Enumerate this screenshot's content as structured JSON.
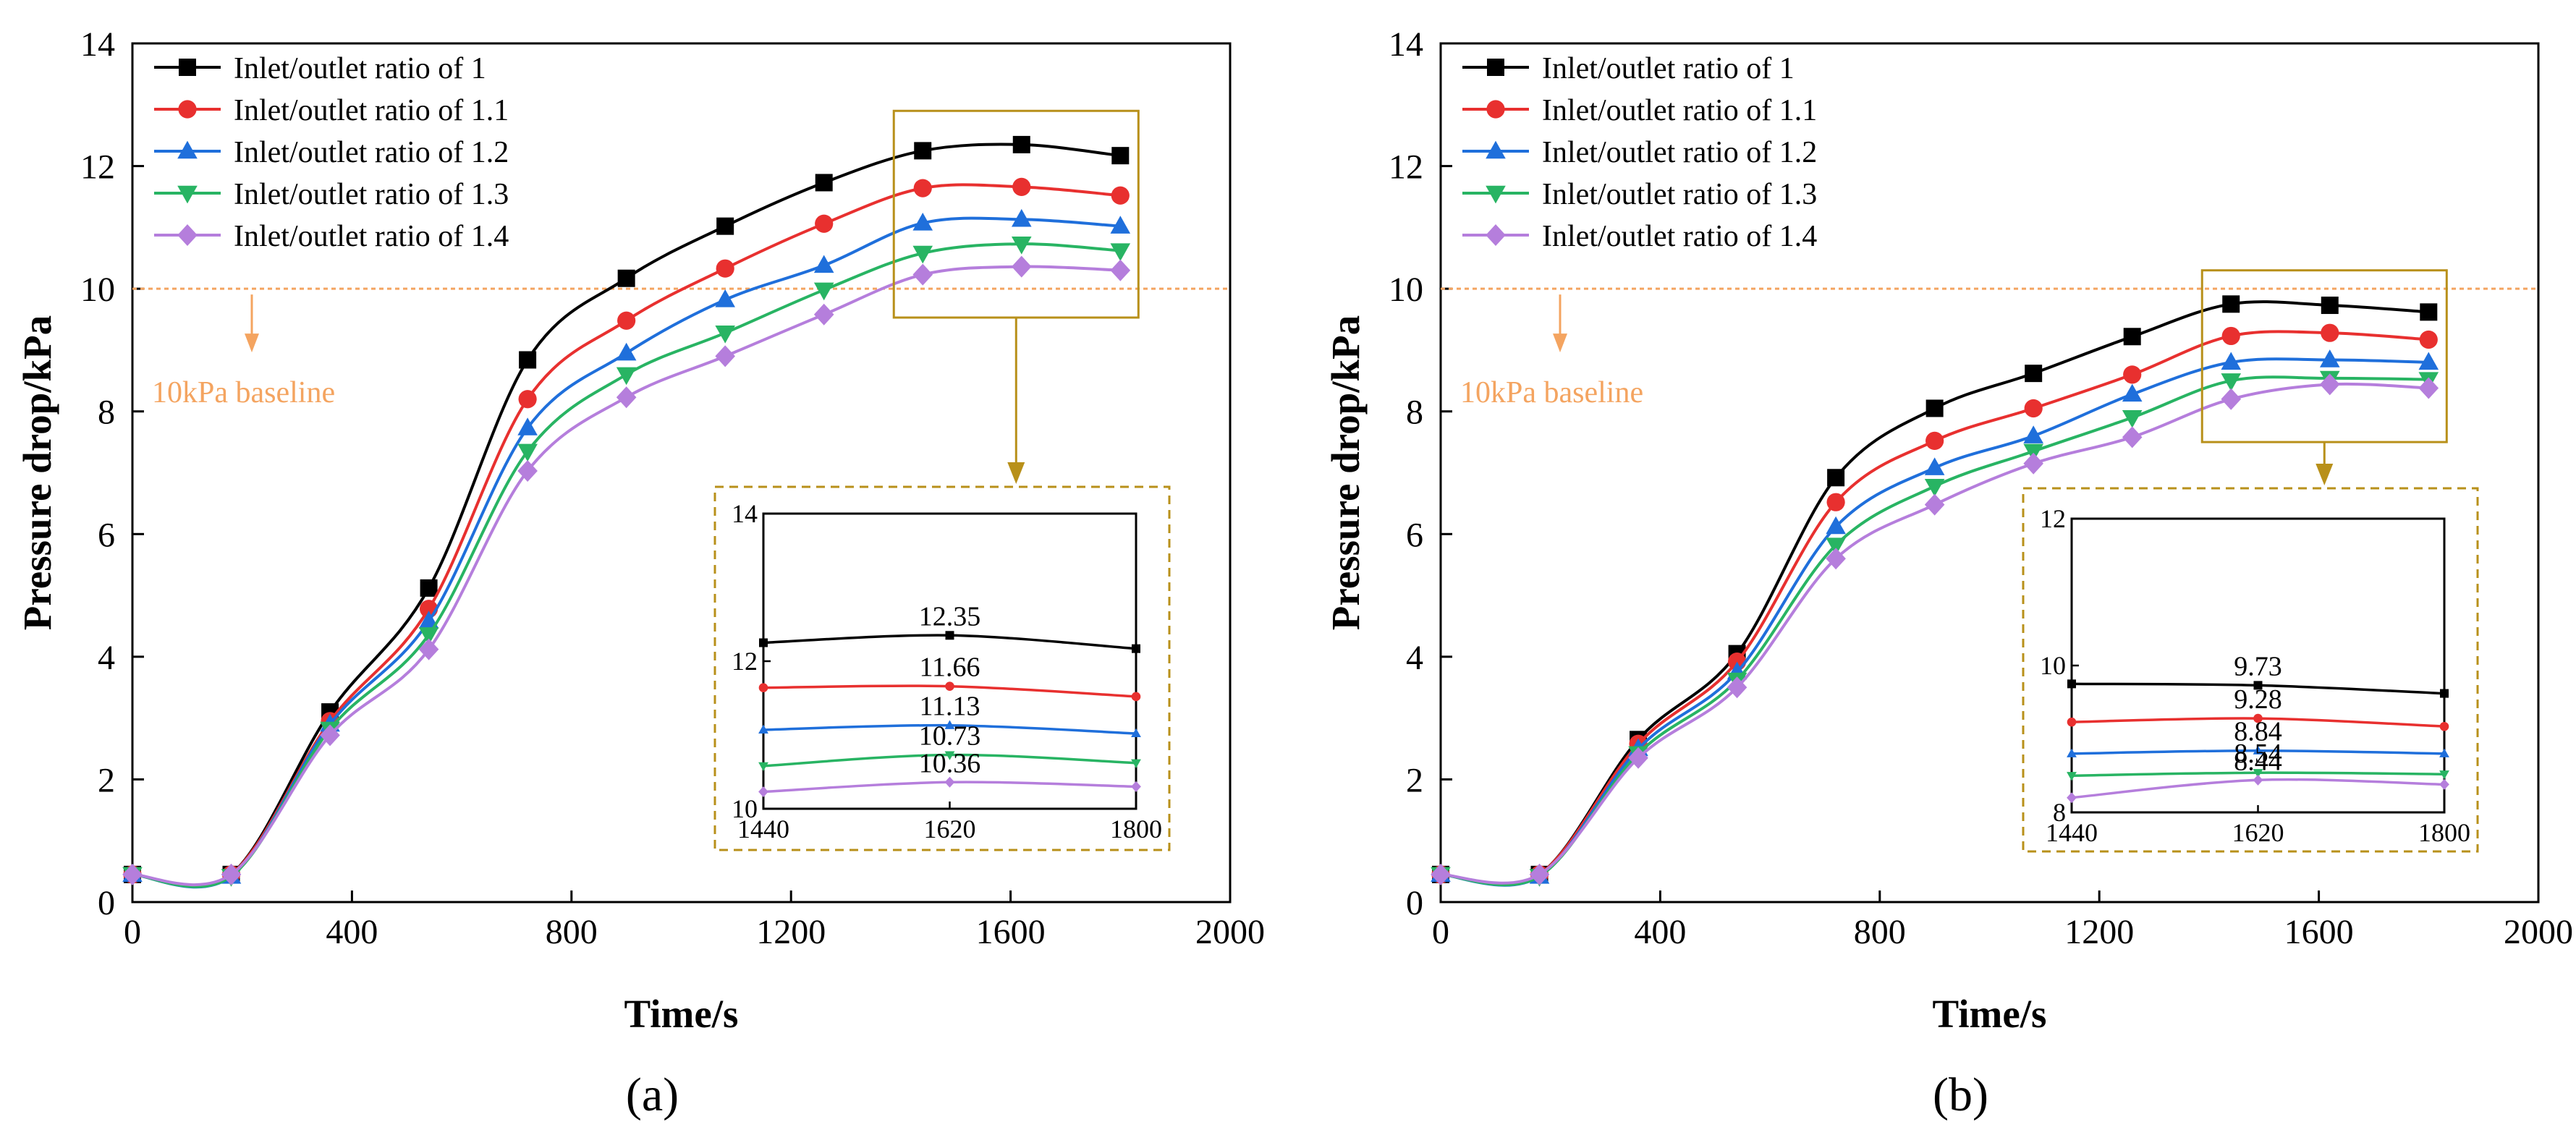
{
  "chart_data": [
    {
      "type": "line",
      "panel_label": "(a)",
      "xlabel": "Time/s",
      "ylabel": "Pressure drop/kPa",
      "xlim": [
        0,
        2000
      ],
      "ylim": [
        0,
        14
      ],
      "xticks": [
        "0",
        "400",
        "800",
        "1200",
        "1600",
        "2000"
      ],
      "yticks": [
        "0",
        "2",
        "4",
        "6",
        "8",
        "10",
        "12",
        "14"
      ],
      "grid": false,
      "legend_position": "top-left",
      "baseline": {
        "y": 10,
        "label": "10kPa baseline",
        "color": "#f4a460"
      },
      "x": [
        0,
        180,
        360,
        540,
        720,
        900,
        1080,
        1260,
        1440,
        1620,
        1800
      ],
      "series": [
        {
          "name": "Inlet/outlet ratio of 1",
          "color": "#000000",
          "marker": "square",
          "values": [
            0.45,
            0.45,
            3.1,
            5.12,
            8.84,
            10.17,
            11.02,
            11.73,
            12.25,
            12.35,
            12.17
          ]
        },
        {
          "name": "Inlet/outlet ratio of 1.1",
          "color": "#e8302f",
          "marker": "circle",
          "values": [
            0.45,
            0.45,
            2.95,
            4.78,
            8.2,
            9.48,
            10.33,
            11.06,
            11.64,
            11.66,
            11.52
          ]
        },
        {
          "name": "Inlet/outlet ratio of 1.2",
          "color": "#1f6fdb",
          "marker": "triangle-up",
          "values": [
            0.45,
            0.42,
            2.9,
            4.58,
            7.73,
            8.95,
            9.82,
            10.38,
            11.07,
            11.13,
            11.02
          ]
        },
        {
          "name": "Inlet/outlet ratio of 1.3",
          "color": "#28b463",
          "marker": "triangle-down",
          "values": [
            0.45,
            0.42,
            2.82,
            4.36,
            7.35,
            8.6,
            9.28,
            9.98,
            10.58,
            10.73,
            10.62
          ]
        },
        {
          "name": "Inlet/outlet ratio of 1.4",
          "color": "#b57edc",
          "marker": "diamond",
          "values": [
            0.45,
            0.45,
            2.72,
            4.12,
            7.03,
            8.23,
            8.9,
            9.58,
            10.23,
            10.36,
            10.3
          ]
        }
      ],
      "inset": {
        "xlim": [
          1440,
          1800
        ],
        "ylim": [
          10,
          14
        ],
        "xticks": [
          "1440",
          "1620",
          "1800"
        ],
        "yticks": [
          "10",
          "12",
          "14"
        ],
        "annotations": [
          "12.35",
          "11.66",
          "11.13",
          "10.73",
          "10.36"
        ]
      }
    },
    {
      "type": "line",
      "panel_label": "(b)",
      "xlabel": "Time/s",
      "ylabel": "Pressure drop/kPa",
      "xlim": [
        0,
        2000
      ],
      "ylim": [
        0,
        14
      ],
      "xticks": [
        "0",
        "400",
        "800",
        "1200",
        "1600",
        "2000"
      ],
      "yticks": [
        "0",
        "2",
        "4",
        "6",
        "8",
        "10",
        "12",
        "14"
      ],
      "grid": false,
      "legend_position": "top-left",
      "baseline": {
        "y": 10,
        "label": "10kPa baseline",
        "color": "#f4a460"
      },
      "x": [
        0,
        180,
        360,
        540,
        720,
        900,
        1080,
        1260,
        1440,
        1620,
        1800
      ],
      "series": [
        {
          "name": "Inlet/outlet ratio of 1",
          "color": "#000000",
          "marker": "square",
          "values": [
            0.45,
            0.45,
            2.65,
            4.05,
            6.92,
            8.05,
            8.62,
            9.22,
            9.75,
            9.73,
            9.62
          ]
        },
        {
          "name": "Inlet/outlet ratio of 1.1",
          "color": "#e8302f",
          "marker": "circle",
          "values": [
            0.45,
            0.45,
            2.58,
            3.92,
            6.52,
            7.52,
            8.05,
            8.6,
            9.23,
            9.28,
            9.17
          ]
        },
        {
          "name": "Inlet/outlet ratio of 1.2",
          "color": "#1f6fdb",
          "marker": "triangle-up",
          "values": [
            0.45,
            0.42,
            2.5,
            3.75,
            6.12,
            7.08,
            7.6,
            8.28,
            8.8,
            8.84,
            8.8
          ]
        },
        {
          "name": "Inlet/outlet ratio of 1.3",
          "color": "#28b463",
          "marker": "triangle-down",
          "values": [
            0.45,
            0.42,
            2.42,
            3.62,
            5.82,
            6.78,
            7.35,
            7.9,
            8.5,
            8.54,
            8.52
          ]
        },
        {
          "name": "Inlet/outlet ratio of 1.4",
          "color": "#b57edc",
          "marker": "diamond",
          "values": [
            0.45,
            0.45,
            2.35,
            3.5,
            5.6,
            6.48,
            7.15,
            7.58,
            8.2,
            8.44,
            8.38
          ]
        }
      ],
      "inset": {
        "xlim": [
          1440,
          1800
        ],
        "ylim": [
          8,
          12
        ],
        "xticks": [
          "1440",
          "1620",
          "1800"
        ],
        "yticks": [
          "8",
          "10",
          "12"
        ],
        "annotations": [
          "9.73",
          "9.28",
          "8.84",
          "8.54",
          "8.44"
        ]
      }
    }
  ]
}
